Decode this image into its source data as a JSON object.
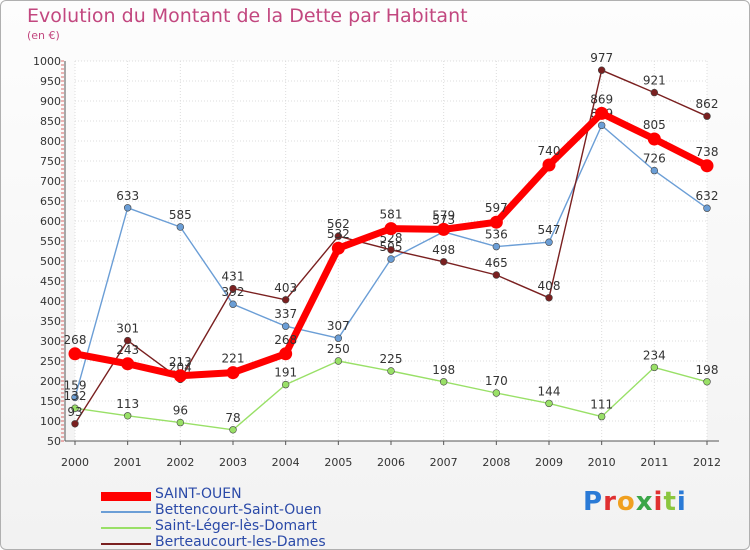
{
  "chart_title": "Evolution du Montant de la Dette par Habitant",
  "chart_subtitle": "(en €)",
  "logo_text": "Proxiti",
  "chart_data": {
    "type": "line",
    "title": "Evolution du Montant de la Dette par Habitant",
    "ylabel": "(en €)",
    "x": [
      "2000",
      "2001",
      "2002",
      "2003",
      "2004",
      "2005",
      "2006",
      "2007",
      "2008",
      "2009",
      "2010",
      "2011",
      "2012"
    ],
    "ylim": [
      50,
      1000
    ],
    "yticks": [
      50,
      100,
      150,
      200,
      250,
      300,
      350,
      400,
      450,
      500,
      550,
      600,
      650,
      700,
      750,
      800,
      850,
      900,
      950,
      1000
    ],
    "grid": true,
    "legend_position": "bottom-left",
    "series": [
      {
        "name": "SAINT-OUEN",
        "color": "#ff0000",
        "values": [
          268,
          243,
          213,
          221,
          268,
          532,
          581,
          579,
          597,
          740,
          869,
          805,
          738
        ]
      },
      {
        "name": "Bettencourt-Saint-Ouen",
        "color": "#6b9ed6",
        "values": [
          159,
          633,
          585,
          392,
          337,
          307,
          505,
          573,
          536,
          547,
          839,
          726,
          632
        ]
      },
      {
        "name": "Saint-Léger-lès-Domart",
        "color": "#99e067",
        "values": [
          132,
          113,
          96,
          78,
          191,
          250,
          225,
          198,
          170,
          144,
          111,
          234,
          198
        ]
      },
      {
        "name": "Berteaucourt-les-Dames",
        "color": "#7a2020",
        "values": [
          93,
          301,
          204,
          431,
          403,
          562,
          528,
          498,
          465,
          408,
          977,
          921,
          862
        ]
      }
    ]
  }
}
